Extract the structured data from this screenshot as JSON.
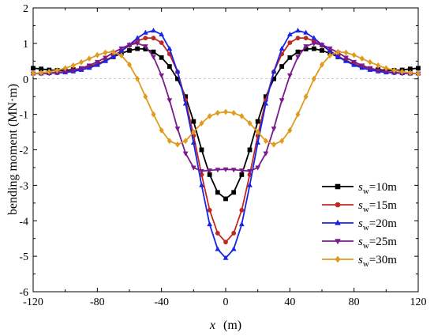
{
  "chart_data": {
    "type": "line",
    "xlabel_var": "x",
    "xlabel_unit": "(m)",
    "ylabel": "bending moment (MN·m)",
    "xlim": [
      -120,
      120
    ],
    "ylim": [
      -6,
      2
    ],
    "xticks": [
      -120,
      -80,
      -40,
      0,
      40,
      80,
      120
    ],
    "yticks": [
      -6,
      -5,
      -4,
      -3,
      -2,
      -1,
      0,
      1,
      2
    ],
    "legend_position": "bottom-right",
    "x": [
      -120,
      -115,
      -110,
      -105,
      -100,
      -95,
      -90,
      -85,
      -80,
      -75,
      -70,
      -65,
      -60,
      -55,
      -50,
      -45,
      -40,
      -35,
      -30,
      -25,
      -20,
      -15,
      -10,
      -5,
      0,
      5,
      10,
      15,
      20,
      25,
      30,
      35,
      40,
      45,
      50,
      55,
      60,
      65,
      70,
      75,
      80,
      85,
      90,
      95,
      100,
      105,
      110,
      115,
      120
    ],
    "series": [
      {
        "name_base": "s",
        "name_sub": "w",
        "name_rest": "=10m",
        "color": "#000000",
        "marker": "square",
        "values": [
          0.3,
          0.28,
          0.25,
          0.24,
          0.24,
          0.26,
          0.29,
          0.34,
          0.42,
          0.52,
          0.62,
          0.72,
          0.8,
          0.85,
          0.84,
          0.76,
          0.6,
          0.35,
          0.0,
          -0.5,
          -1.2,
          -2.0,
          -2.7,
          -3.2,
          -3.38,
          -3.2,
          -2.7,
          -2.0,
          -1.2,
          -0.5,
          0.0,
          0.35,
          0.6,
          0.76,
          0.84,
          0.85,
          0.8,
          0.72,
          0.62,
          0.52,
          0.42,
          0.34,
          0.29,
          0.26,
          0.24,
          0.24,
          0.25,
          0.28,
          0.3
        ]
      },
      {
        "name_base": "s",
        "name_sub": "w",
        "name_rest": "=15m",
        "color": "#c0281e",
        "marker": "circle",
        "values": [
          0.15,
          0.15,
          0.16,
          0.17,
          0.19,
          0.22,
          0.27,
          0.33,
          0.41,
          0.52,
          0.64,
          0.79,
          0.94,
          1.07,
          1.15,
          1.15,
          1.02,
          0.7,
          0.2,
          -0.6,
          -1.6,
          -2.7,
          -3.7,
          -4.35,
          -4.6,
          -4.35,
          -3.7,
          -2.7,
          -1.6,
          -0.6,
          0.2,
          0.7,
          1.02,
          1.15,
          1.15,
          1.07,
          0.94,
          0.79,
          0.64,
          0.52,
          0.41,
          0.33,
          0.27,
          0.22,
          0.19,
          0.17,
          0.16,
          0.15,
          0.15
        ]
      },
      {
        "name_base": "s",
        "name_sub": "w",
        "name_rest": "=20m",
        "color": "#1a24e6",
        "marker": "triangle-up",
        "values": [
          0.15,
          0.15,
          0.16,
          0.17,
          0.18,
          0.21,
          0.25,
          0.31,
          0.39,
          0.5,
          0.62,
          0.78,
          0.96,
          1.15,
          1.3,
          1.36,
          1.25,
          0.85,
          0.2,
          -0.7,
          -1.8,
          -3.0,
          -4.1,
          -4.8,
          -5.05,
          -4.8,
          -4.1,
          -3.0,
          -1.8,
          -0.7,
          0.2,
          0.85,
          1.25,
          1.36,
          1.3,
          1.15,
          0.96,
          0.78,
          0.62,
          0.5,
          0.39,
          0.31,
          0.25,
          0.21,
          0.18,
          0.17,
          0.16,
          0.15,
          0.15
        ]
      },
      {
        "name_base": "s",
        "name_sub": "w",
        "name_rest": "=25m",
        "color": "#7a1a8c",
        "marker": "triangle-down",
        "values": [
          0.15,
          0.15,
          0.16,
          0.18,
          0.2,
          0.24,
          0.3,
          0.38,
          0.48,
          0.6,
          0.74,
          0.86,
          0.96,
          1.0,
          0.92,
          0.62,
          0.1,
          -0.6,
          -1.4,
          -2.1,
          -2.5,
          -2.6,
          -2.58,
          -2.56,
          -2.55,
          -2.56,
          -2.58,
          -2.6,
          -2.5,
          -2.1,
          -1.4,
          -0.6,
          0.1,
          0.62,
          0.92,
          1.0,
          0.96,
          0.86,
          0.74,
          0.6,
          0.48,
          0.38,
          0.3,
          0.24,
          0.2,
          0.18,
          0.16,
          0.15,
          0.15
        ]
      },
      {
        "name_base": "s",
        "name_sub": "w",
        "name_rest": "=30m",
        "color": "#e09a1c",
        "marker": "diamond",
        "values": [
          0.15,
          0.17,
          0.2,
          0.24,
          0.3,
          0.38,
          0.47,
          0.57,
          0.67,
          0.74,
          0.76,
          0.66,
          0.4,
          0.0,
          -0.5,
          -1.0,
          -1.45,
          -1.75,
          -1.85,
          -1.75,
          -1.5,
          -1.25,
          -1.05,
          -0.96,
          -0.93,
          -0.96,
          -1.05,
          -1.25,
          -1.5,
          -1.75,
          -1.85,
          -1.75,
          -1.45,
          -1.0,
          -0.5,
          0.0,
          0.4,
          0.66,
          0.76,
          0.74,
          0.67,
          0.57,
          0.47,
          0.38,
          0.3,
          0.24,
          0.2,
          0.17,
          0.15
        ]
      }
    ]
  }
}
